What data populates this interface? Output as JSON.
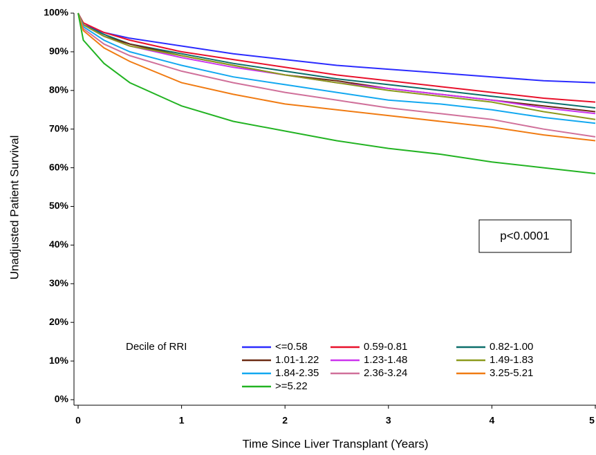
{
  "chart_data": {
    "type": "line",
    "x_label": "Time Since Liver Transplant (Years)",
    "y_label": "Unadjusted Patient Survival",
    "annotation": "p<0.0001",
    "legend_title": "Decile of RRI",
    "xlim": [
      0,
      5
    ],
    "xticks": [
      0,
      1,
      2,
      3,
      4,
      5
    ],
    "ylim": [
      0,
      100
    ],
    "yticks": [
      {
        "value": 0,
        "label": "0%"
      },
      {
        "value": 10,
        "label": "10%"
      },
      {
        "value": 20,
        "label": "20%"
      },
      {
        "value": 30,
        "label": "30%"
      },
      {
        "value": 40,
        "label": "40%"
      },
      {
        "value": 50,
        "label": "50%"
      },
      {
        "value": 60,
        "label": "60%"
      },
      {
        "value": 70,
        "label": "70%"
      },
      {
        "value": 80,
        "label": "80%"
      },
      {
        "value": 90,
        "label": "90%"
      },
      {
        "value": 100,
        "label": "100%"
      }
    ],
    "x": [
      0,
      0.05,
      0.25,
      0.5,
      1,
      1.5,
      2,
      2.5,
      3,
      3.5,
      4,
      4.5,
      5
    ],
    "series": [
      {
        "name": "<=0.58",
        "color": "#2b2bff",
        "values": [
          100,
          97,
          95,
          93.5,
          91.5,
          89.5,
          88,
          86.5,
          85.5,
          84.5,
          83.5,
          82.5,
          82
        ]
      },
      {
        "name": "0.59-0.81",
        "color": "#e8102a",
        "values": [
          100,
          97.5,
          95,
          93,
          90,
          88,
          86,
          84,
          82.5,
          81,
          79.5,
          78,
          77
        ]
      },
      {
        "name": "0.82-1.00",
        "color": "#0b6e6a",
        "values": [
          100,
          97,
          94.5,
          92,
          89.5,
          87,
          85,
          83,
          81.5,
          80,
          78.5,
          77,
          75.5
        ]
      },
      {
        "name": "1.01-1.22",
        "color": "#6b2a12",
        "values": [
          100,
          97,
          94,
          92,
          89,
          86.5,
          84,
          82.5,
          80.5,
          79,
          77.5,
          76,
          74.5
        ]
      },
      {
        "name": "1.23-1.48",
        "color": "#cc33ee",
        "values": [
          100,
          97,
          94,
          91.5,
          88.5,
          86,
          84,
          82,
          80.5,
          79,
          77.5,
          75.5,
          74
        ]
      },
      {
        "name": "1.49-1.83",
        "color": "#8c9a1c",
        "values": [
          100,
          97,
          94,
          91.5,
          89,
          86.5,
          84,
          82,
          80,
          78.5,
          77,
          74.5,
          72.5
        ]
      },
      {
        "name": "1.84-2.35",
        "color": "#12a8f0",
        "values": [
          100,
          96.5,
          93,
          90,
          86.5,
          83.5,
          81.5,
          79.5,
          77.5,
          76.5,
          75,
          73,
          71.5
        ]
      },
      {
        "name": "2.36-3.24",
        "color": "#d0709a",
        "values": [
          100,
          96,
          92,
          89,
          85,
          82,
          79.5,
          77.5,
          75.5,
          74,
          72.5,
          70,
          68
        ]
      },
      {
        "name": "3.25-5.21",
        "color": "#f07b12",
        "values": [
          100,
          95.5,
          91,
          87.5,
          82,
          79,
          76.5,
          75,
          73.5,
          72,
          70.5,
          68.5,
          67
        ]
      },
      {
        "name": ">=5.22",
        "color": "#22b322",
        "values": [
          100,
          93,
          87,
          82,
          76,
          72,
          69.5,
          67,
          65,
          63.5,
          61.5,
          60,
          58.5
        ]
      }
    ]
  }
}
